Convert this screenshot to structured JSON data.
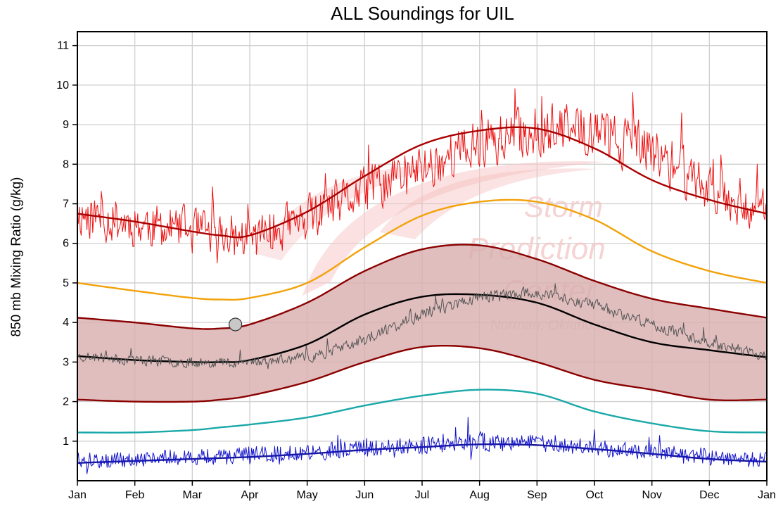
{
  "chart_data": {
    "type": "line",
    "title": "ALL Soundings for UIL",
    "xlabel": "",
    "ylabel": "850 mb Mixing Ratio (g/kg)",
    "ylim": [
      0,
      11.35
    ],
    "x_ticks": [
      "Jan",
      "Feb",
      "Mar",
      "Apr",
      "May",
      "Jun",
      "Jul",
      "Aug",
      "Sep",
      "Oct",
      "Nov",
      "Dec",
      "Jan"
    ],
    "y_ticks": [
      1,
      2,
      3,
      4,
      5,
      6,
      7,
      8,
      9,
      10,
      11
    ],
    "grid": true,
    "legend": "none",
    "x_unit": "month",
    "x_domain": [
      0,
      12
    ],
    "watermark": {
      "line1": "Storm",
      "line2": "Prediction",
      "line3": "Center",
      "line4": "Norman, Oklahoma"
    },
    "series": [
      {
        "role": "daily-max",
        "color": "#ee1111",
        "mean": [
          6.75,
          6.5,
          6.3,
          6.1,
          6.6,
          7.3,
          7.9,
          8.5,
          8.85,
          8.85,
          8.3,
          7.4,
          6.8
        ],
        "jitter": 1.0,
        "seed": 11
      },
      {
        "role": "max-smooth",
        "color": "#aa0000",
        "x": [
          0,
          1,
          2,
          2.5,
          3,
          4,
          5,
          6,
          7,
          8,
          9,
          10,
          11,
          12
        ],
        "y": [
          6.75,
          6.55,
          6.3,
          6.2,
          6.2,
          6.8,
          7.7,
          8.5,
          8.85,
          8.9,
          8.4,
          7.6,
          7.1,
          6.75
        ]
      },
      {
        "role": "upper-percentile",
        "color": "#f2a20a",
        "x": [
          0,
          1,
          2,
          2.5,
          3,
          4,
          5,
          6,
          7,
          8,
          9,
          10,
          11,
          12
        ],
        "y": [
          5.0,
          4.8,
          4.62,
          4.58,
          4.62,
          5.0,
          5.9,
          6.7,
          7.05,
          7.05,
          6.6,
          5.8,
          5.3,
          5.0
        ]
      },
      {
        "role": "band-upper",
        "color": "#8b0000",
        "x": [
          0,
          1,
          2,
          2.5,
          3,
          4,
          5,
          6,
          7,
          8,
          9,
          10,
          11,
          12
        ],
        "y": [
          4.12,
          4.0,
          3.85,
          3.85,
          3.95,
          4.5,
          5.3,
          5.85,
          5.95,
          5.6,
          5.05,
          4.6,
          4.35,
          4.12
        ]
      },
      {
        "role": "mean",
        "color": "#000000",
        "x": [
          0,
          1,
          2,
          2.5,
          3,
          4,
          5,
          6,
          7,
          8,
          9,
          10,
          11,
          12
        ],
        "y": [
          3.15,
          3.05,
          3.0,
          3.0,
          3.05,
          3.45,
          4.2,
          4.65,
          4.7,
          4.5,
          3.95,
          3.5,
          3.3,
          3.12
        ]
      },
      {
        "role": "daily-sounding",
        "color": "#555555",
        "mean": [
          3.15,
          3.05,
          3.0,
          3.0,
          3.1,
          3.55,
          4.2,
          4.65,
          4.75,
          4.45,
          3.95,
          3.5,
          3.15
        ],
        "jitter": 0.3,
        "seed": 23
      },
      {
        "role": "band-lower",
        "color": "#8b0000",
        "x": [
          0,
          1,
          2,
          2.5,
          3,
          4,
          5,
          6,
          7,
          8,
          9,
          10,
          11,
          12
        ],
        "y": [
          2.05,
          2.0,
          2.0,
          2.05,
          2.15,
          2.5,
          3.0,
          3.38,
          3.35,
          3.0,
          2.55,
          2.3,
          2.05,
          2.05
        ]
      },
      {
        "role": "lower-percentile",
        "color": "#1aa8a8",
        "x": [
          0,
          1,
          2,
          2.5,
          3,
          4,
          5,
          6,
          7,
          8,
          9,
          10,
          11,
          12
        ],
        "y": [
          1.22,
          1.22,
          1.28,
          1.35,
          1.42,
          1.6,
          1.9,
          2.15,
          2.3,
          2.2,
          1.75,
          1.45,
          1.25,
          1.22
        ]
      },
      {
        "role": "min-smooth",
        "color": "#1a1a99",
        "x": [
          0,
          1,
          2,
          3,
          4,
          5,
          6,
          7,
          8,
          9,
          10,
          11,
          12
        ],
        "y": [
          0.45,
          0.5,
          0.55,
          0.6,
          0.68,
          0.78,
          0.85,
          0.92,
          0.9,
          0.8,
          0.68,
          0.55,
          0.48
        ]
      },
      {
        "role": "daily-min",
        "color": "#1111cc",
        "mean": [
          0.45,
          0.5,
          0.55,
          0.6,
          0.68,
          0.78,
          0.85,
          0.92,
          0.9,
          0.8,
          0.68,
          0.55,
          0.48
        ],
        "jitter": 0.6,
        "seed": 37
      }
    ],
    "band": {
      "fill": "#d8aeae",
      "between": [
        "band-upper",
        "band-lower"
      ]
    },
    "markers": [
      {
        "x": 2.75,
        "y": 3.95,
        "color": "#c8c8c8"
      }
    ]
  }
}
